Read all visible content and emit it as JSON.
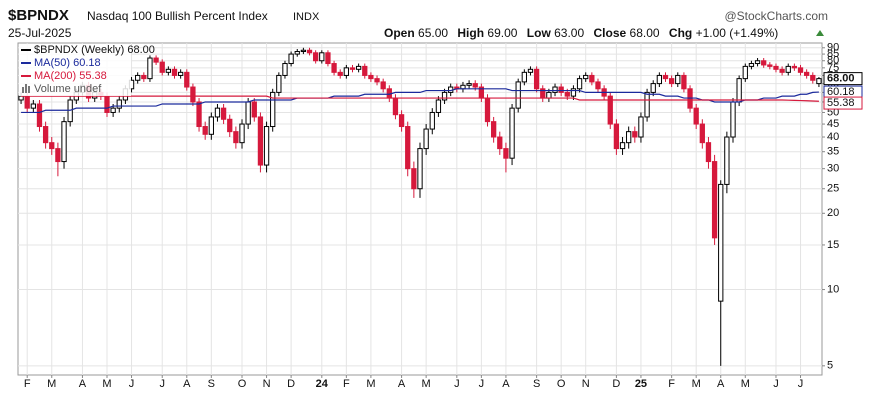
{
  "chart_data": {
    "type": "candlestick",
    "symbol": "$BPNDX",
    "title": "Nasdaq 100 Bullish Percent Index",
    "exchange": "INDX",
    "date": "25-Jul-2025",
    "source": "@StockCharts.com",
    "stats": [
      {
        "label": "Open",
        "value": "65.00"
      },
      {
        "label": "High",
        "value": "69.00"
      },
      {
        "label": "Low",
        "value": "63.00"
      },
      {
        "label": "Close",
        "value": "68.00"
      },
      {
        "label": "Chg",
        "value": "+1.00 (+1.49%)"
      }
    ],
    "volume_label": "Volume undef",
    "log_scale": true,
    "grid": true,
    "legend": "top-left",
    "ylim": [
      4.6,
      94
    ],
    "yticks": [
      5,
      10,
      15,
      20,
      25,
      30,
      35,
      40,
      45,
      50,
      55,
      60,
      65,
      70,
      75,
      80,
      85,
      90
    ],
    "categories": [
      null,
      "F",
      null,
      null,
      null,
      "M",
      null,
      null,
      null,
      null,
      "A",
      null,
      null,
      null,
      "M",
      null,
      null,
      null,
      "J",
      null,
      null,
      null,
      null,
      "J",
      null,
      null,
      null,
      "A",
      null,
      null,
      null,
      "S",
      null,
      null,
      null,
      null,
      "O",
      null,
      null,
      null,
      "N",
      null,
      null,
      null,
      "D",
      null,
      null,
      null,
      null,
      "24",
      null,
      null,
      null,
      "F",
      null,
      null,
      null,
      "M",
      null,
      null,
      null,
      null,
      "A",
      null,
      null,
      null,
      "M",
      null,
      null,
      null,
      null,
      "J",
      null,
      null,
      null,
      "J",
      null,
      null,
      null,
      "A",
      null,
      null,
      null,
      null,
      "S",
      null,
      null,
      null,
      "O",
      null,
      null,
      null,
      "N",
      null,
      null,
      null,
      null,
      "D",
      null,
      null,
      null,
      "25",
      null,
      null,
      null,
      null,
      "F",
      null,
      null,
      null,
      "M",
      null,
      null,
      null,
      "A",
      null,
      null,
      null,
      "M",
      null,
      null,
      null,
      null,
      "J",
      null,
      null,
      null,
      "J",
      null,
      null,
      null
    ],
    "series": [
      {
        "name": "$BPNDX (Weekly)",
        "up_color": "#000000",
        "down_color": "#d6193c",
        "last_label": "68.00",
        "open": [
          56,
          58,
          52,
          54,
          44,
          38,
          36,
          32,
          46,
          56,
          60,
          64,
          57,
          60,
          58,
          50,
          52,
          56,
          62,
          67,
          70,
          68,
          82,
          79,
          72,
          74,
          70,
          72,
          63,
          55,
          44,
          41,
          48,
          52,
          47,
          42,
          38,
          45,
          55,
          48,
          31,
          44,
          60,
          70,
          78,
          85,
          87,
          88,
          86,
          80,
          86,
          78,
          72,
          70,
          75,
          74,
          76,
          70,
          68,
          66,
          62,
          57,
          49,
          44,
          30,
          25,
          36,
          43,
          50,
          56,
          60,
          63,
          62,
          64,
          65,
          63,
          57,
          46,
          40,
          36,
          33,
          52,
          66,
          72,
          74,
          62,
          57,
          60,
          63,
          60,
          58,
          62,
          68,
          70,
          66,
          62,
          58,
          45,
          36,
          38,
          42,
          40,
          48,
          60,
          65,
          70,
          68,
          65,
          70,
          62,
          52,
          45,
          38,
          32,
          9,
          26,
          40,
          55,
          68,
          76,
          78,
          80,
          77,
          76,
          74,
          72,
          76,
          75,
          72,
          70,
          65
        ],
        "high": [
          60,
          60,
          56,
          56,
          46,
          40,
          38,
          48,
          58,
          62,
          66,
          66,
          62,
          62,
          60,
          54,
          58,
          64,
          69,
          72,
          72,
          84,
          84,
          81,
          76,
          76,
          74,
          74,
          65,
          57,
          46,
          50,
          54,
          54,
          49,
          44,
          47,
          57,
          57,
          50,
          46,
          62,
          72,
          80,
          87,
          89,
          90,
          90,
          88,
          88,
          88,
          80,
          74,
          77,
          77,
          78,
          78,
          72,
          70,
          68,
          64,
          59,
          51,
          46,
          32,
          38,
          45,
          52,
          58,
          62,
          65,
          65,
          66,
          67,
          67,
          65,
          59,
          48,
          42,
          38,
          54,
          68,
          74,
          76,
          76,
          64,
          62,
          65,
          65,
          62,
          64,
          70,
          72,
          72,
          68,
          64,
          60,
          47,
          40,
          44,
          44,
          50,
          62,
          67,
          72,
          72,
          70,
          72,
          72,
          64,
          54,
          47,
          40,
          34,
          27,
          42,
          57,
          70,
          78,
          80,
          82,
          82,
          79,
          78,
          76,
          78,
          78,
          77,
          74,
          72,
          69
        ],
        "low": [
          54,
          50,
          50,
          42,
          36,
          34,
          28,
          30,
          44,
          54,
          58,
          55,
          55,
          56,
          48,
          48,
          50,
          54,
          60,
          65,
          66,
          66,
          77,
          70,
          70,
          68,
          68,
          61,
          53,
          42,
          39,
          39,
          46,
          45,
          40,
          36,
          36,
          43,
          46,
          29,
          29,
          42,
          58,
          68,
          76,
          83,
          85,
          84,
          78,
          78,
          76,
          70,
          68,
          68,
          72,
          72,
          68,
          66,
          64,
          60,
          55,
          47,
          42,
          28,
          23,
          23,
          34,
          41,
          48,
          54,
          58,
          60,
          60,
          62,
          61,
          55,
          44,
          38,
          34,
          29,
          31,
          50,
          64,
          70,
          60,
          55,
          55,
          58,
          58,
          56,
          56,
          60,
          66,
          64,
          60,
          56,
          43,
          34,
          34,
          36,
          38,
          38,
          46,
          58,
          63,
          66,
          63,
          63,
          60,
          50,
          43,
          36,
          30,
          15,
          5,
          24,
          38,
          53,
          66,
          74,
          76,
          75,
          74,
          72,
          70,
          70,
          73,
          70,
          68,
          65,
          63
        ],
        "close": [
          58,
          52,
          54,
          44,
          38,
          36,
          32,
          46,
          56,
          60,
          64,
          57,
          60,
          58,
          50,
          52,
          56,
          62,
          67,
          70,
          68,
          82,
          79,
          72,
          74,
          70,
          72,
          63,
          55,
          44,
          41,
          48,
          52,
          47,
          42,
          38,
          45,
          55,
          48,
          31,
          44,
          60,
          70,
          78,
          85,
          87,
          88,
          86,
          80,
          86,
          78,
          72,
          70,
          75,
          74,
          76,
          70,
          68,
          66,
          62,
          57,
          49,
          44,
          30,
          25,
          36,
          43,
          50,
          56,
          60,
          63,
          62,
          64,
          65,
          63,
          57,
          46,
          40,
          36,
          33,
          52,
          66,
          72,
          74,
          62,
          57,
          60,
          63,
          60,
          58,
          62,
          68,
          70,
          66,
          62,
          58,
          45,
          36,
          38,
          42,
          40,
          48,
          60,
          65,
          70,
          68,
          65,
          70,
          62,
          52,
          45,
          38,
          32,
          16,
          26,
          40,
          55,
          68,
          76,
          78,
          80,
          77,
          76,
          74,
          72,
          76,
          75,
          72,
          70,
          67,
          68
        ]
      },
      {
        "name": "MA(50)",
        "color": "#1b2a9c",
        "last_label": "60.18",
        "values": [
          50,
          50,
          50,
          50,
          51,
          51,
          51,
          51,
          51,
          52,
          52,
          52,
          52,
          52,
          52,
          53,
          53,
          53,
          53,
          53,
          53,
          53,
          53,
          54,
          54,
          54,
          54,
          54,
          54,
          54,
          55,
          55,
          55,
          55,
          55,
          55,
          55,
          55,
          56,
          56,
          56,
          56,
          56,
          56,
          56,
          57,
          57,
          57,
          57,
          57,
          57,
          58,
          58,
          58,
          58,
          58,
          59,
          59,
          59,
          59,
          59,
          60,
          60,
          60,
          60,
          60,
          61,
          61,
          61,
          61,
          61,
          62,
          62,
          62,
          62,
          62,
          62,
          62,
          62,
          62,
          61,
          61,
          61,
          61,
          61,
          61,
          61,
          61,
          61,
          61,
          61,
          61,
          60,
          60,
          60,
          60,
          60,
          60,
          60,
          60,
          60,
          60,
          59,
          59,
          59,
          58,
          58,
          58,
          57,
          57,
          57,
          56,
          56,
          55,
          55,
          55,
          55,
          55,
          56,
          56,
          56,
          57,
          57,
          57,
          58,
          58,
          58,
          59,
          59,
          60,
          60.18
        ]
      },
      {
        "name": "MA(200)",
        "color": "#d6193c",
        "last_label": "55.38",
        "values": [
          58,
          58,
          58,
          58,
          58,
          58,
          58,
          58,
          58,
          58,
          58,
          58,
          58,
          58,
          58,
          58,
          58,
          58,
          58,
          58,
          58,
          58,
          58,
          58,
          58,
          58,
          58,
          58,
          58,
          58,
          58,
          58,
          58,
          58,
          58,
          58,
          58,
          58,
          58,
          58,
          58,
          57,
          57,
          57,
          57,
          57,
          57,
          57,
          57,
          57,
          57,
          57,
          57,
          57,
          57,
          57,
          57,
          57,
          57,
          57,
          57,
          57,
          57,
          57,
          57,
          57,
          57,
          57,
          57,
          57,
          57,
          57,
          57,
          57,
          57,
          57,
          57,
          57,
          57,
          57,
          57,
          57,
          57,
          57,
          57,
          57,
          57,
          57,
          57,
          57,
          57,
          56,
          56,
          56,
          56,
          56,
          56,
          56,
          56,
          56,
          56,
          56,
          56,
          56,
          56,
          56,
          56,
          56,
          56,
          56,
          56,
          56,
          56,
          56,
          56,
          56,
          56,
          56,
          56,
          56,
          56,
          56,
          56,
          56,
          56,
          55.9,
          55.8,
          55.7,
          55.6,
          55.5,
          55.38
        ]
      }
    ]
  }
}
